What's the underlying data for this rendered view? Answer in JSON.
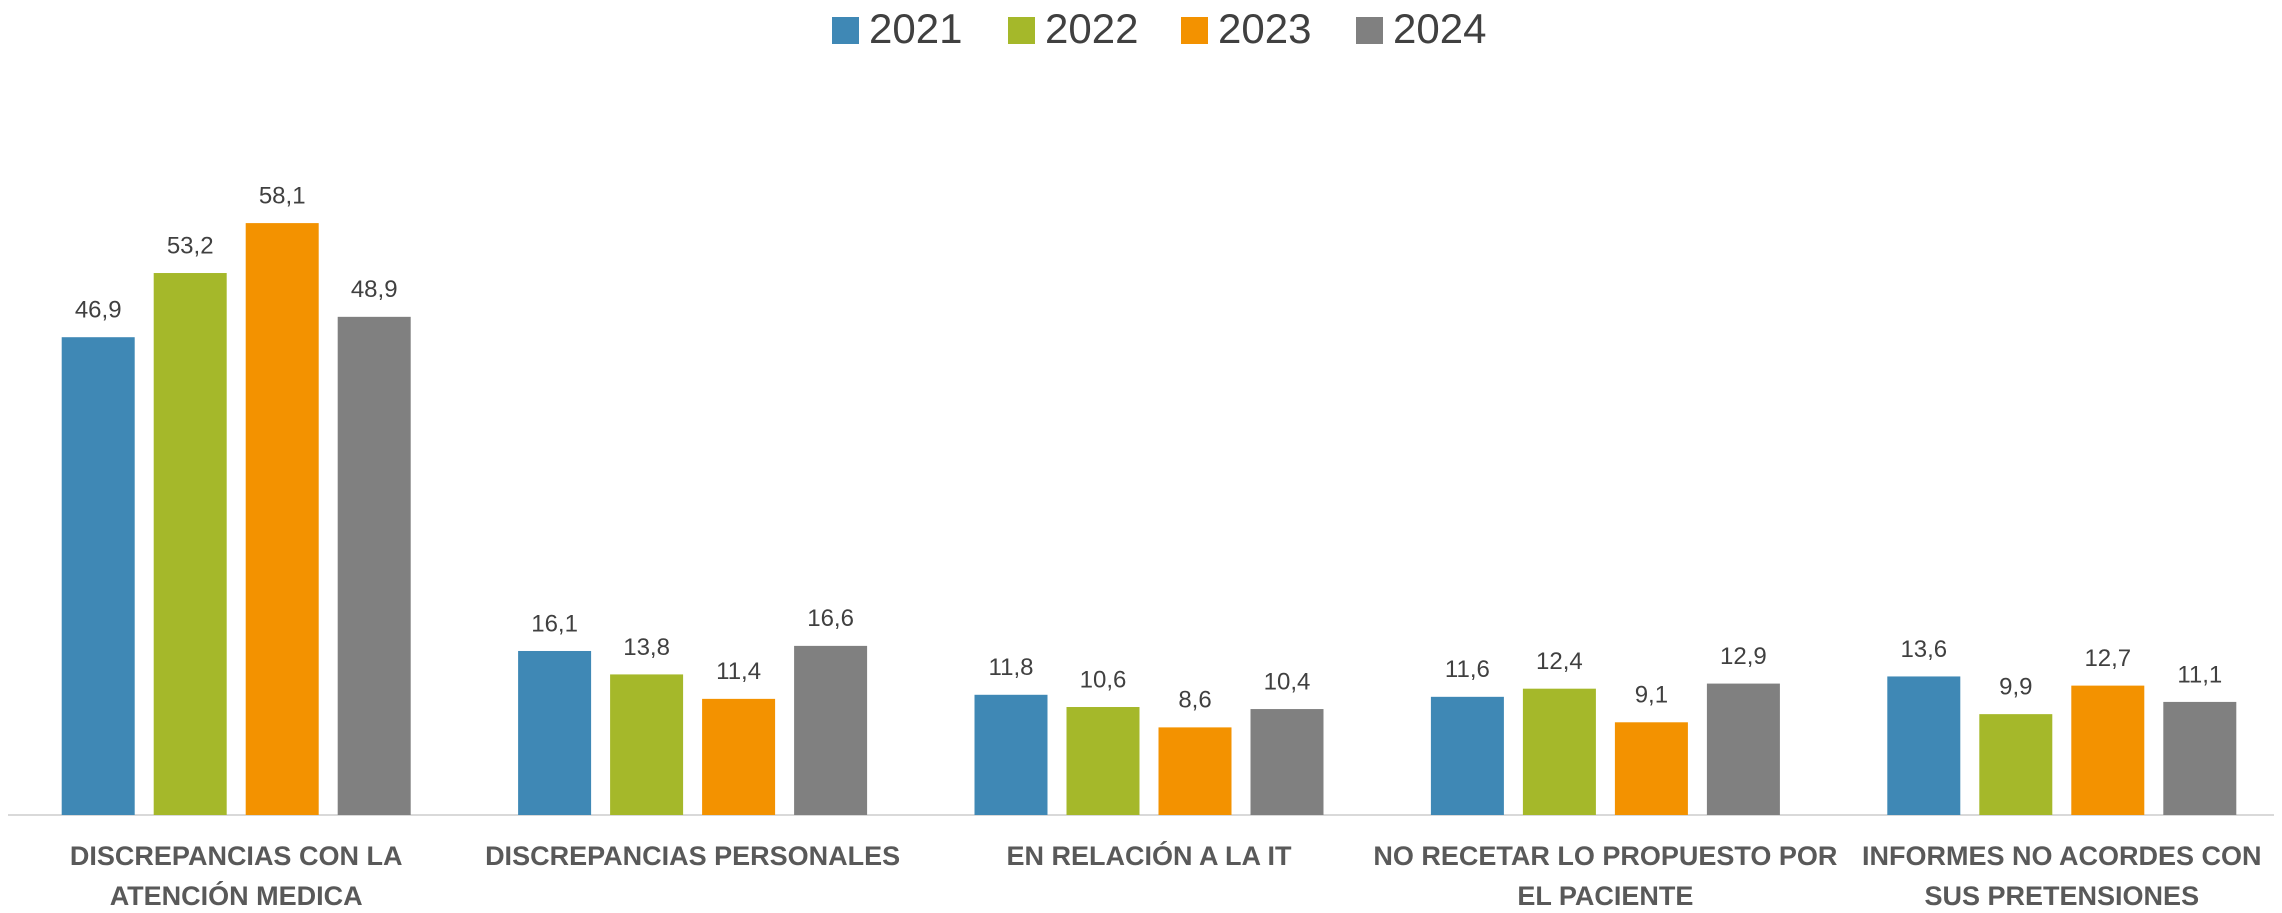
{
  "chart_data": {
    "type": "bar",
    "categories": [
      [
        "DISCREPANCIAS CON LA",
        "ATENCIÓN MEDICA"
      ],
      [
        "DISCREPANCIAS PERSONALES"
      ],
      [
        "EN RELACIÓN A LA IT"
      ],
      [
        "NO RECETAR LO PROPUESTO POR",
        "EL PACIENTE"
      ],
      [
        "INFORMES NO ACORDES CON",
        "SUS PRETENSIONES"
      ]
    ],
    "series": [
      {
        "name": "2021",
        "color": "#3f88b5",
        "values": [
          46.9,
          16.1,
          11.8,
          11.6,
          13.6
        ],
        "value_labels": [
          "46,9",
          "16,1",
          "11,8",
          "11,6",
          "13,6"
        ]
      },
      {
        "name": "2022",
        "color": "#a5b82a",
        "values": [
          53.2,
          13.8,
          10.6,
          12.4,
          9.9
        ],
        "value_labels": [
          "53,2",
          "13,8",
          "10,6",
          "12,4",
          "9,9"
        ]
      },
      {
        "name": "2023",
        "color": "#f39200",
        "values": [
          58.1,
          11.4,
          8.6,
          9.1,
          12.7
        ],
        "value_labels": [
          "58,1",
          "11,4",
          "8,6",
          "9,1",
          "12,7"
        ]
      },
      {
        "name": "2024",
        "color": "#808080",
        "values": [
          48.9,
          16.6,
          10.4,
          12.9,
          11.1
        ],
        "value_labels": [
          "48,9",
          "16,6",
          "10,4",
          "12,9",
          "11,1"
        ]
      }
    ],
    "ylim": [
      0,
      80
    ],
    "legend": "top"
  }
}
